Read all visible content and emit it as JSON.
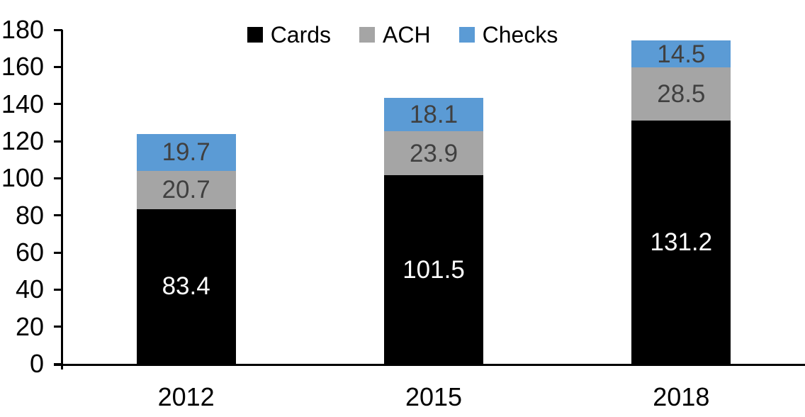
{
  "chart_data": {
    "type": "bar",
    "stacked": true,
    "title": "",
    "categories": [
      "2012",
      "2015",
      "2018"
    ],
    "series": [
      {
        "name": "Cards",
        "color": "#000000",
        "label_color": "#FFFFFF",
        "values": [
          83.4,
          101.5,
          131.2
        ]
      },
      {
        "name": "ACH",
        "color": "#A5A5A5",
        "label_color": "#404040",
        "values": [
          20.7,
          23.9,
          28.5
        ]
      },
      {
        "name": "Checks",
        "color": "#5B9BD5",
        "label_color": "#404040",
        "values": [
          19.7,
          18.1,
          14.5
        ]
      }
    ],
    "totals": [
      123.8,
      143.5,
      174.2
    ],
    "xlabel": "",
    "ylabel": "",
    "ylim": [
      0,
      180
    ],
    "y_ticks": [
      0,
      20,
      40,
      60,
      80,
      100,
      120,
      140,
      160,
      180
    ],
    "grid": false,
    "legend_position": "top-center",
    "legend_labels": [
      "Cards",
      "ACH",
      "Checks"
    ],
    "axis_color": "#000000",
    "background_color": "#FFFFFF"
  }
}
